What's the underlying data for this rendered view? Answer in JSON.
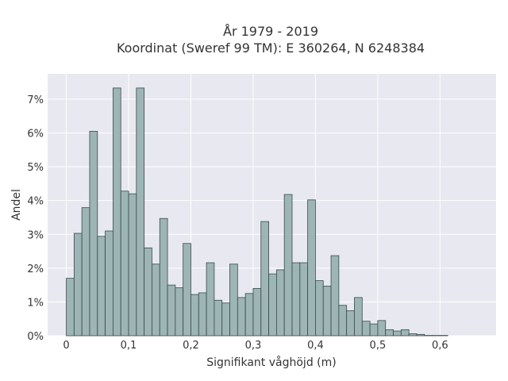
{
  "chart_data": {
    "type": "bar",
    "title_line1": "År 1979 - 2019",
    "title_line2": "Koordinat (Sweref 99 TM): E 360264, N 6248384",
    "xlabel": "Signifikant våghöjd (m)",
    "ylabel": "Andel",
    "grid": true,
    "bin_width": 0.0125,
    "x_start": 0.0,
    "xlim": [
      -0.03,
      0.69
    ],
    "ylim": [
      0,
      7.75
    ],
    "x_ticks": [
      0,
      0.1,
      0.2,
      0.3,
      0.4,
      0.5,
      0.6
    ],
    "x_tick_labels": [
      "0",
      "0,1",
      "0,2",
      "0,3",
      "0,4",
      "0,5",
      "0,6"
    ],
    "y_ticks": [
      0,
      1,
      2,
      3,
      4,
      5,
      6,
      7
    ],
    "y_tick_labels": [
      "0%",
      "1%",
      "2%",
      "3%",
      "4%",
      "5%",
      "6%",
      "7%"
    ],
    "values": [
      1.7,
      3.03,
      3.79,
      6.05,
      2.94,
      3.1,
      7.33,
      4.28,
      4.2,
      7.33,
      2.6,
      2.12,
      3.47,
      1.5,
      1.42,
      2.73,
      1.22,
      1.27,
      2.16,
      1.05,
      0.97,
      2.12,
      1.13,
      1.25,
      1.4,
      3.38,
      1.83,
      1.95,
      4.18,
      2.16,
      2.16,
      4.02,
      1.63,
      1.47,
      2.37,
      0.9,
      0.74,
      1.13,
      0.43,
      0.35,
      0.45,
      0.18,
      0.14,
      0.18,
      0.06,
      0.04,
      0.01,
      0.01,
      0.01
    ],
    "colors": {
      "bar_fill": "#9db5b5",
      "bar_stroke": "#3a4a4a",
      "plot_bg": "#e8e8f0",
      "grid": "#ffffff"
    }
  }
}
